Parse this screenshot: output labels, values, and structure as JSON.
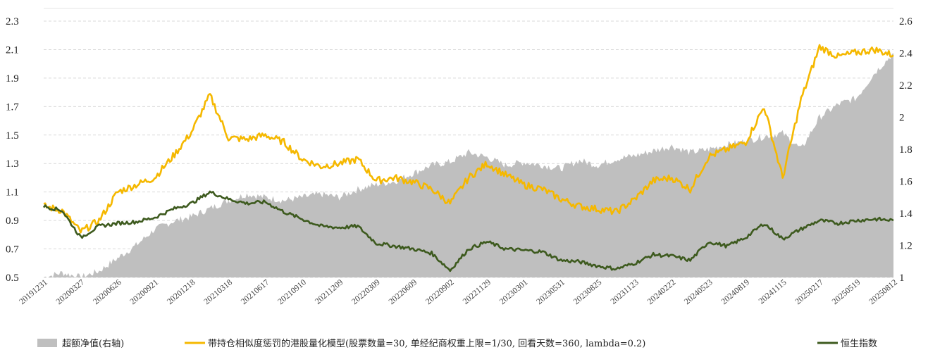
{
  "chart_data": {
    "type": "area+line",
    "left_axis": {
      "ticks": [
        "0.5",
        "0.7",
        "0.9",
        "1.1",
        "1.3",
        "1.5",
        "1.7",
        "1.9",
        "2.1",
        "2.3"
      ],
      "range": [
        0.5,
        2.3
      ]
    },
    "right_axis": {
      "ticks": [
        "1",
        "1.2",
        "1.4",
        "1.6",
        "1.8",
        "2",
        "2.2",
        "2.4",
        "2.6"
      ],
      "range": [
        1.0,
        2.6
      ]
    },
    "x_labels": [
      "20191231",
      "20200327",
      "20200626",
      "20200921",
      "20201218",
      "20210318",
      "20210617",
      "20210910",
      "20211209",
      "20220309",
      "20220609",
      "20220902",
      "20221129",
      "20230301",
      "20230531",
      "20230825",
      "20231123",
      "20240222",
      "20240523",
      "20240819",
      "20241115",
      "20250217",
      "20250519",
      "20250812"
    ],
    "grid": "horizontal-dashed",
    "legend_position": "bottom",
    "series": [
      {
        "name": "超额净值(右轴)",
        "kind": "area",
        "axis": "right",
        "color": "#bfbfbf",
        "x": [
          0,
          0.5,
          1,
          1.5,
          2,
          2.5,
          3,
          3.5,
          4,
          4.5,
          5,
          5.5,
          6,
          6.5,
          7,
          7.5,
          8,
          8.5,
          9,
          9.5,
          10,
          10.5,
          11,
          11.5,
          12,
          12.5,
          13,
          13.5,
          14,
          14.5,
          15,
          15.5,
          16,
          16.5,
          17,
          17.5,
          18,
          18.5,
          19,
          19.5,
          20,
          20.5,
          21,
          21.5,
          22,
          22.5,
          23
        ],
        "values": [
          1.0,
          1.03,
          1.0,
          1.04,
          1.12,
          1.2,
          1.3,
          1.35,
          1.38,
          1.43,
          1.48,
          1.52,
          1.5,
          1.48,
          1.5,
          1.52,
          1.5,
          1.55,
          1.58,
          1.6,
          1.65,
          1.7,
          1.72,
          1.78,
          1.75,
          1.7,
          1.72,
          1.7,
          1.68,
          1.73,
          1.7,
          1.74,
          1.76,
          1.79,
          1.82,
          1.78,
          1.8,
          1.83,
          1.85,
          1.88,
          1.9,
          1.8,
          2.0,
          2.08,
          2.12,
          2.28,
          2.4
        ]
      },
      {
        "name": "带持仓相似度惩罚的港股量化模型(股票数量=30, 单经纪商权重上限=1/30, 回看天数=360, lambda=0.2)",
        "kind": "line",
        "axis": "left",
        "color": "#f5b800",
        "x": [
          0,
          0.5,
          1,
          1.5,
          2,
          2.5,
          3,
          3.5,
          4,
          4.5,
          5,
          5.5,
          6,
          6.5,
          7,
          7.5,
          8,
          8.5,
          9,
          9.5,
          10,
          10.5,
          11,
          11.5,
          12,
          12.5,
          13,
          13.5,
          14,
          14.5,
          15,
          15.5,
          16,
          16.5,
          17,
          17.5,
          18,
          18.5,
          19,
          19.5,
          20,
          20.5,
          21,
          21.5,
          22,
          22.5,
          23
        ],
        "values": [
          1.0,
          0.97,
          0.82,
          0.9,
          1.1,
          1.15,
          1.2,
          1.35,
          1.52,
          1.78,
          1.48,
          1.47,
          1.5,
          1.45,
          1.33,
          1.28,
          1.3,
          1.33,
          1.18,
          1.2,
          1.17,
          1.12,
          1.02,
          1.2,
          1.3,
          1.22,
          1.15,
          1.12,
          1.05,
          1.0,
          0.98,
          0.96,
          1.05,
          1.18,
          1.2,
          1.12,
          1.35,
          1.4,
          1.45,
          1.7,
          1.2,
          1.75,
          2.12,
          2.05,
          2.08,
          2.1,
          2.06
        ]
      },
      {
        "name": "恒生指数",
        "kind": "line",
        "axis": "left",
        "color": "#3d5a1e",
        "x": [
          0,
          0.5,
          1,
          1.5,
          2,
          2.5,
          3,
          3.5,
          4,
          4.5,
          5,
          5.5,
          6,
          6.5,
          7,
          7.5,
          8,
          8.5,
          9,
          9.5,
          10,
          10.5,
          11,
          11.5,
          12,
          12.5,
          13,
          13.5,
          14,
          14.5,
          15,
          15.5,
          16,
          16.5,
          17,
          17.5,
          18,
          18.5,
          19,
          19.5,
          20,
          20.5,
          21,
          21.5,
          22,
          22.5,
          23
        ],
        "values": [
          1.0,
          0.97,
          0.78,
          0.86,
          0.88,
          0.89,
          0.92,
          0.98,
          1.02,
          1.1,
          1.05,
          1.02,
          1.03,
          0.96,
          0.91,
          0.86,
          0.85,
          0.86,
          0.74,
          0.72,
          0.7,
          0.67,
          0.55,
          0.7,
          0.75,
          0.7,
          0.69,
          0.68,
          0.62,
          0.61,
          0.58,
          0.56,
          0.6,
          0.66,
          0.65,
          0.62,
          0.75,
          0.72,
          0.78,
          0.88,
          0.77,
          0.84,
          0.9,
          0.88,
          0.9,
          0.91,
          0.9
        ]
      }
    ]
  }
}
